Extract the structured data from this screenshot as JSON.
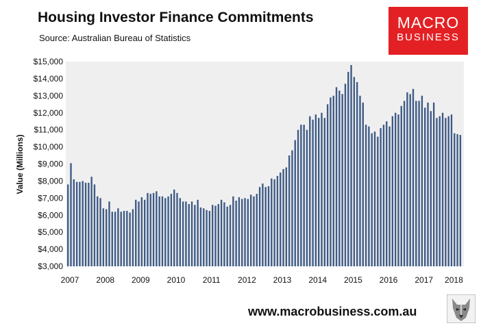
{
  "header": {
    "title": "Housing Investor Finance Commitments",
    "subtitle": "Source: Australian Bureau of Statistics"
  },
  "logo": {
    "line1": "MACRO",
    "line2": "BUSINESS"
  },
  "footer": {
    "url": "www.macrobusiness.com.au"
  },
  "colors": {
    "bar": "#3d5a85",
    "plot_bg": "#efefef",
    "logo_bg": "#e32124"
  },
  "chart_data": {
    "type": "bar",
    "title": "Housing Investor Finance Commitments",
    "ylabel": "Value (Millions)",
    "xlabel": "",
    "ylim": [
      3000,
      15000
    ],
    "grid": false,
    "x_start": "2007-01",
    "frequency": "monthly",
    "xticks": [
      "2007",
      "2008",
      "2009",
      "2010",
      "2011",
      "2012",
      "2013",
      "2014",
      "2015",
      "2016",
      "2017",
      "2018"
    ],
    "yticks": [
      "$3,000",
      "$4,000",
      "$5,000",
      "$6,000",
      "$7,000",
      "$8,000",
      "$9,000",
      "$10,000",
      "$11,000",
      "$12,000",
      "$13,000",
      "$14,000",
      "$15,000"
    ],
    "values": [
      7800,
      9050,
      8100,
      7950,
      7950,
      8000,
      7900,
      7900,
      8250,
      7800,
      7100,
      7000,
      6400,
      6350,
      6800,
      6200,
      6200,
      6400,
      6200,
      6250,
      6250,
      6150,
      6350,
      6900,
      6800,
      7050,
      6900,
      7300,
      7250,
      7300,
      7400,
      7100,
      7100,
      7000,
      7100,
      7250,
      7500,
      7300,
      7000,
      6800,
      6800,
      6650,
      6800,
      6600,
      6900,
      6450,
      6400,
      6300,
      6250,
      6600,
      6550,
      6650,
      6900,
      6750,
      6500,
      6600,
      7100,
      6850,
      7050,
      6950,
      7000,
      6950,
      7200,
      7100,
      7250,
      7650,
      7850,
      7650,
      7700,
      8150,
      8100,
      8300,
      8500,
      8700,
      8800,
      9500,
      9800,
      10400,
      11000,
      11300,
      11300,
      11000,
      11800,
      11600,
      11900,
      11700,
      12000,
      11700,
      12500,
      12900,
      13000,
      13500,
      13300,
      13100,
      13700,
      14400,
      14800,
      14100,
      13800,
      13000,
      12600,
      11300,
      11200,
      10800,
      10900,
      10600,
      11100,
      11300,
      11500,
      11200,
      11800,
      12000,
      11900,
      12400,
      12700,
      13200,
      13100,
      13400,
      12700,
      12700,
      13000,
      12300,
      12600,
      12100,
      12600,
      11700,
      11800,
      12000,
      11700,
      11800,
      11900,
      10800,
      10750,
      10700
    ]
  }
}
